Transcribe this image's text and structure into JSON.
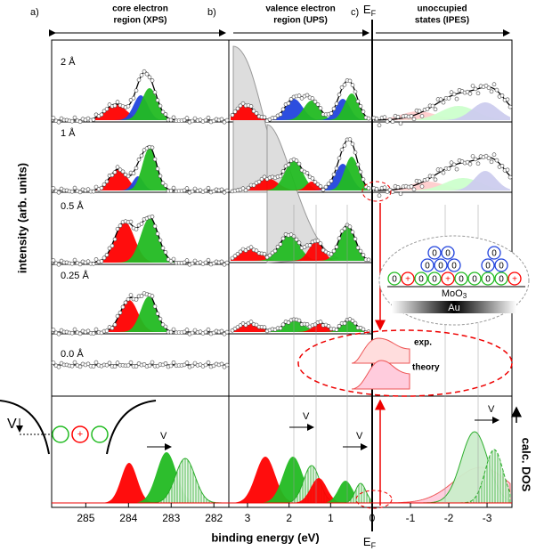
{
  "chart_data": [
    {
      "type": "spectrum",
      "label": "a)",
      "title": [
        "core electron",
        "region (XPS)"
      ],
      "xlim": [
        285.8,
        281.65
      ],
      "xticks": [
        285,
        284,
        283,
        282
      ]
    },
    {
      "type": "spectrum",
      "label": "b)",
      "title": [
        "valence electron",
        "region (UPS)"
      ],
      "xlim": [
        3.45,
        0
      ],
      "xticks": [
        3,
        2,
        1,
        0
      ]
    },
    {
      "type": "spectrum",
      "label": "c)",
      "title": [
        "unoccupied",
        "states (IPES)"
      ],
      "xlim": [
        0,
        -3.65
      ],
      "xticks": [
        -1,
        -2,
        -3
      ]
    }
  ],
  "ylabel": "intensity (arb. units)",
  "xlabel": "binding energy (eV)",
  "calc_label": "calc. DOS",
  "fermi": {
    "main": "E",
    "sub": "F"
  },
  "thickness_labels": [
    "2 Å",
    "1 Å",
    "0.5 Å",
    "0.25 Å",
    "0.0 Å"
  ],
  "shift_label": "V",
  "exp_label": "exp.",
  "theory_label": "theory",
  "inset": {
    "zero": "0",
    "plus": "+",
    "moo3": {
      "main": "MoO",
      "sub": "3"
    },
    "au": "Au"
  }
}
